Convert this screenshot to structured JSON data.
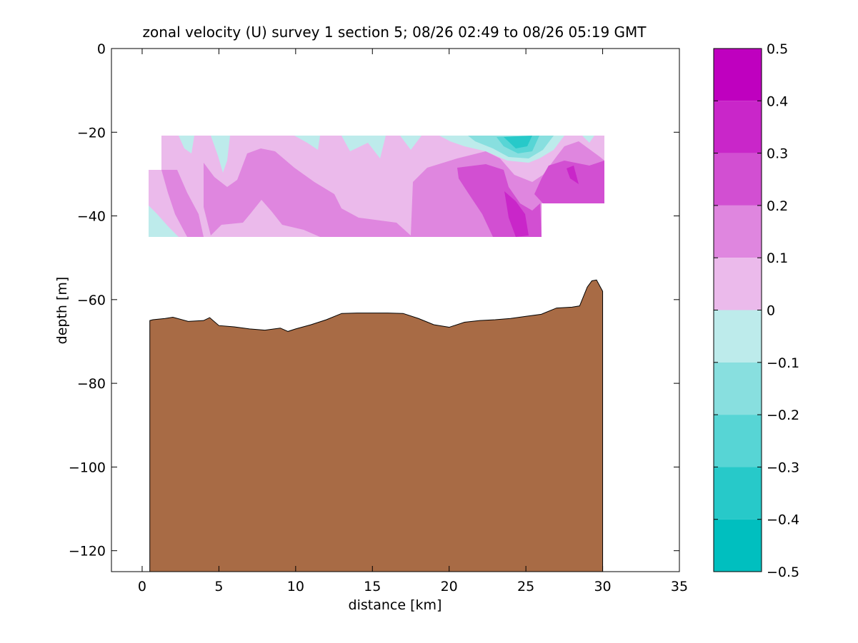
{
  "chart_data": {
    "type": "contour",
    "title": "zonal velocity (U) survey 1 section 5; 08/26 02:49 to 08/26 05:19 GMT",
    "xlabel": "distance [km]",
    "ylabel": "depth [m]",
    "xlim": [
      -2,
      35
    ],
    "ylim": [
      -125,
      0
    ],
    "xticks": [
      0,
      5,
      10,
      15,
      20,
      25,
      30,
      35
    ],
    "yticks": [
      0,
      -20,
      -40,
      -60,
      -80,
      -100,
      -120
    ],
    "colorbar": {
      "range": [
        -0.5,
        0.5
      ],
      "ticks": [
        0.5,
        0.4,
        0.3,
        0.2,
        0.1,
        0,
        -0.1,
        -0.2,
        -0.3,
        -0.4,
        -0.5
      ],
      "levels": [
        {
          "from": 0.4,
          "to": 0.5,
          "color": "#bf00bf"
        },
        {
          "from": 0.3,
          "to": 0.4,
          "color": "#c926c9"
        },
        {
          "from": 0.2,
          "to": 0.3,
          "color": "#d24fd2"
        },
        {
          "from": 0.1,
          "to": 0.2,
          "color": "#df86df"
        },
        {
          "from": 0.0,
          "to": 0.1,
          "color": "#ebbaeb"
        },
        {
          "from": -0.1,
          "to": 0.0,
          "color": "#bdebeb"
        },
        {
          "from": -0.2,
          "to": -0.1,
          "color": "#88dfdf"
        },
        {
          "from": -0.3,
          "to": -0.2,
          "color": "#57d5d5"
        },
        {
          "from": -0.4,
          "to": -0.3,
          "color": "#27c9c9"
        },
        {
          "from": -0.5,
          "to": -0.4,
          "color": "#00bfbf"
        }
      ]
    },
    "data_coverage": {
      "x_start_km": 1.2,
      "x_end_km": 30.1,
      "top_depth_m": -21,
      "bottom_depth_m": -45
    },
    "bottom_color": "#a86b45",
    "bathymetry": {
      "x": [
        0.5,
        0.7,
        1.5,
        2.0,
        3.0,
        4.0,
        4.4,
        5.0,
        6.0,
        7.0,
        8.0,
        9.0,
        9.5,
        10.0,
        11.0,
        12.0,
        13.0,
        14.0,
        15.0,
        16.0,
        17.0,
        18.0,
        19.0,
        20.0,
        21.0,
        22.0,
        23.0,
        24.0,
        25.0,
        26.0,
        27.0,
        28.0,
        28.5,
        29.0,
        29.3,
        29.6,
        30.0
      ],
      "depth": [
        -65,
        -64.8,
        -64.5,
        -64.2,
        -65.2,
        -65.0,
        -64.3,
        -66.2,
        -66.5,
        -67.0,
        -67.3,
        -66.8,
        -67.6,
        -67.0,
        -66.0,
        -64.8,
        -63.3,
        -63.2,
        -63.2,
        -63.2,
        -63.3,
        -64.5,
        -66.0,
        -66.6,
        -65.4,
        -65.0,
        -64.8,
        -64.5,
        -64.0,
        -63.5,
        -62.0,
        -61.8,
        -61.5,
        -57.0,
        -55.5,
        -55.3,
        -58.0
      ]
    }
  }
}
